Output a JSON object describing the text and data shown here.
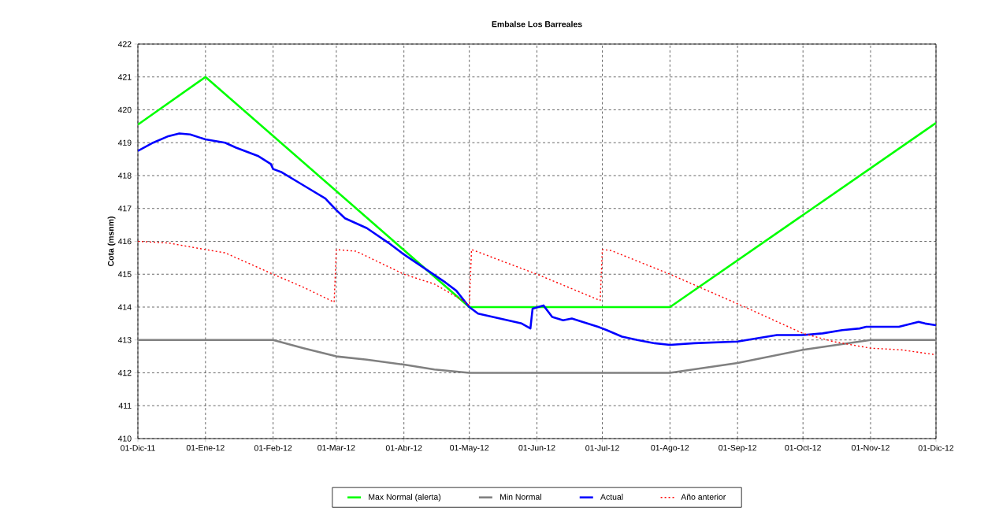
{
  "chart_data": {
    "type": "line",
    "title": "Embalse Los Barreales",
    "ylabel": "Cota (msnm)",
    "xlim": [
      "2011-12-01",
      "2012-12-01"
    ],
    "ylim": [
      410,
      422
    ],
    "yticks": [
      410,
      411,
      412,
      413,
      414,
      415,
      416,
      417,
      418,
      419,
      420,
      421,
      422
    ],
    "xticks": [
      {
        "value": "2011-12-01",
        "label": "01-Dic-11"
      },
      {
        "value": "2012-01-01",
        "label": "01-Ene-12"
      },
      {
        "value": "2012-02-01",
        "label": "01-Feb-12"
      },
      {
        "value": "2012-03-01",
        "label": "01-Mar-12"
      },
      {
        "value": "2012-04-01",
        "label": "01-Abr-12"
      },
      {
        "value": "2012-05-01",
        "label": "01-May-12"
      },
      {
        "value": "2012-06-01",
        "label": "01-Jun-12"
      },
      {
        "value": "2012-07-01",
        "label": "01-Jul-12"
      },
      {
        "value": "2012-08-01",
        "label": "01-Ago-12"
      },
      {
        "value": "2012-09-01",
        "label": "01-Sep-12"
      },
      {
        "value": "2012-10-01",
        "label": "01-Oct-12"
      },
      {
        "value": "2012-11-01",
        "label": "01-Nov-12"
      },
      {
        "value": "2012-12-01",
        "label": "01-Dic-12"
      }
    ],
    "grid": true,
    "legend": "bottom",
    "marker": "none",
    "series": [
      {
        "name": "Max Normal (alerta)",
        "color": "#00ff00",
        "line_style": "solid",
        "x": [
          "2011-12-01",
          "2012-01-01",
          "2012-05-01",
          "2012-08-01",
          "2012-12-01"
        ],
        "values": [
          419.55,
          421,
          414,
          414,
          419.6
        ]
      },
      {
        "name": "Min Normal",
        "color": "#808080",
        "line_style": "solid",
        "x": [
          "2011-12-01",
          "2012-02-01",
          "2012-02-15",
          "2012-03-01",
          "2012-03-15",
          "2012-04-01",
          "2012-04-15",
          "2012-05-01",
          "2012-08-01",
          "2012-09-01",
          "2012-10-01",
          "2012-11-01",
          "2012-12-01"
        ],
        "values": [
          413,
          413,
          412.75,
          412.5,
          412.4,
          412.25,
          412.1,
          412,
          412,
          412.3,
          412.7,
          413,
          413
        ]
      },
      {
        "name": "Actual",
        "color": "#0000ff",
        "line_style": "solid",
        "x": [
          "2011-12-01",
          "2011-12-08",
          "2011-12-15",
          "2011-12-20",
          "2011-12-25",
          "2012-01-01",
          "2012-01-10",
          "2012-01-15",
          "2012-01-25",
          "2012-01-31",
          "2012-02-01",
          "2012-02-05",
          "2012-02-15",
          "2012-02-25",
          "2012-03-01",
          "2012-03-05",
          "2012-03-15",
          "2012-03-25",
          "2012-04-01",
          "2012-04-10",
          "2012-04-20",
          "2012-04-25",
          "2012-05-01",
          "2012-05-05",
          "2012-05-15",
          "2012-05-25",
          "2012-05-29",
          "2012-05-30",
          "2012-06-04",
          "2012-06-08",
          "2012-06-13",
          "2012-06-17",
          "2012-06-29",
          "2012-07-03",
          "2012-07-10",
          "2012-07-17",
          "2012-07-25",
          "2012-08-01",
          "2012-08-12",
          "2012-09-01",
          "2012-09-10",
          "2012-09-19",
          "2012-10-01",
          "2012-10-10",
          "2012-10-19",
          "2012-10-27",
          "2012-10-30",
          "2012-11-14",
          "2012-11-23",
          "2012-11-26",
          "2012-12-01"
        ],
        "values": [
          418.75,
          419.0,
          419.2,
          419.28,
          419.25,
          419.1,
          419.0,
          418.85,
          418.6,
          418.35,
          418.2,
          418.1,
          417.7,
          417.3,
          416.95,
          416.7,
          416.4,
          415.95,
          415.6,
          415.2,
          414.75,
          414.5,
          414.0,
          413.8,
          413.65,
          413.5,
          413.35,
          413.95,
          414.05,
          413.7,
          413.6,
          413.65,
          413.4,
          413.3,
          413.1,
          413.0,
          412.9,
          412.85,
          412.9,
          412.95,
          413.05,
          413.15,
          413.15,
          413.2,
          413.3,
          413.35,
          413.4,
          413.4,
          413.55,
          413.5,
          413.45
        ]
      },
      {
        "name": "Año anterior",
        "color": "#ff0000",
        "line_style": "dotted",
        "x": [
          "2011-12-01",
          "2011-12-15",
          "2012-01-01",
          "2012-01-10",
          "2012-02-01",
          "2012-02-15",
          "2012-02-29",
          "2012-03-01",
          "2012-03-10",
          "2012-04-01",
          "2012-04-15",
          "2012-04-28",
          "2012-05-01",
          "2012-05-02",
          "2012-06-01",
          "2012-06-30",
          "2012-07-01",
          "2012-07-05",
          "2012-08-01",
          "2012-09-01",
          "2012-10-01",
          "2012-10-15",
          "2012-11-01",
          "2012-11-15",
          "2012-12-01"
        ],
        "values": [
          416,
          415.95,
          415.75,
          415.65,
          415.0,
          414.6,
          414.15,
          415.75,
          415.7,
          415.0,
          414.7,
          414.2,
          414.05,
          415.75,
          415.0,
          414.2,
          415.75,
          415.72,
          415.0,
          414.1,
          413.2,
          412.95,
          412.75,
          412.7,
          412.55
        ]
      }
    ]
  }
}
